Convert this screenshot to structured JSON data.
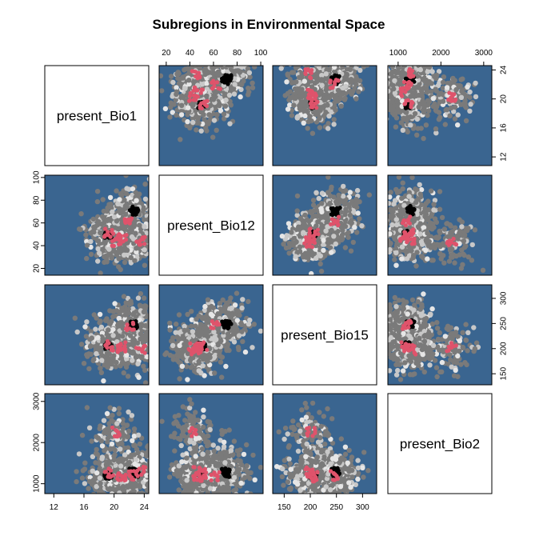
{
  "chart_data": {
    "type": "scatter",
    "title": "Subregions in Environmental Space",
    "variables": [
      "present_Bio1",
      "present_Bio12",
      "present_Bio15",
      "present_Bio2"
    ],
    "ranges": {
      "present_Bio1": [
        10.8,
        24.6
      ],
      "present_Bio12": [
        14,
        102
      ],
      "present_Bio15": [
        128,
        327
      ],
      "present_Bio2": [
        760,
        3190
      ]
    },
    "ticks": {
      "present_Bio1": [
        12,
        16,
        20,
        24
      ],
      "present_Bio12": [
        20,
        40,
        60,
        80,
        100
      ],
      "present_Bio15": [
        150,
        200,
        250,
        300
      ],
      "present_Bio2": [
        1000,
        2000,
        3000
      ]
    },
    "panel_background": "#3a6590",
    "series": [
      {
        "color": "#7a7a7a"
      },
      {
        "color": "#c8c8c8"
      },
      {
        "color": "#e6e6e6"
      },
      {
        "color": "#000000"
      },
      {
        "color": "#df536b"
      }
    ],
    "cluster_points": {
      "black": [
        {
          "present_Bio1": 22.8,
          "present_Bio12": 72,
          "present_Bio15": 250,
          "present_Bio2": 1250
        },
        {
          "present_Bio1": 22.5,
          "present_Bio12": 70,
          "present_Bio15": 247,
          "present_Bio2": 1300
        },
        {
          "present_Bio1": 19.2,
          "present_Bio12": 50,
          "present_Bio15": 206,
          "present_Bio2": 1200
        }
      ],
      "red": [
        {
          "present_Bio1": 19.3,
          "present_Bio12": 51,
          "present_Bio15": 206,
          "present_Bio2": 1250
        },
        {
          "present_Bio1": 21.0,
          "present_Bio12": 47,
          "present_Bio15": 203,
          "present_Bio2": 1150
        },
        {
          "present_Bio1": 23.5,
          "present_Bio12": 45,
          "present_Bio15": 198,
          "present_Bio2": 1300
        },
        {
          "present_Bio1": 20.3,
          "present_Bio12": 43,
          "present_Bio15": 202,
          "present_Bio2": 2250
        },
        {
          "present_Bio1": 22.0,
          "present_Bio12": 62,
          "present_Bio15": 246,
          "present_Bio2": 1200
        }
      ]
    }
  }
}
